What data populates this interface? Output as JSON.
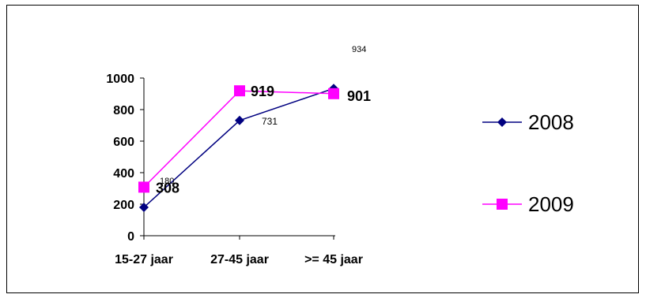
{
  "chart_data": {
    "type": "line",
    "categories": [
      "15-27 jaar",
      "27-45 jaar",
      ">= 45 jaar"
    ],
    "ylim": [
      0,
      1000
    ],
    "yticks": [
      0,
      200,
      400,
      600,
      800,
      1000
    ],
    "grid": false,
    "legend_position": "right",
    "series": [
      {
        "name": "2008",
        "color": "#000080",
        "marker": "diamond",
        "values": [
          180,
          731,
          934
        ],
        "data_labels": [
          "180",
          "731",
          "934"
        ]
      },
      {
        "name": "2009",
        "color": "#ff00ff",
        "marker": "square",
        "values": [
          308,
          919,
          901
        ],
        "data_labels": [
          "308",
          "919",
          "901"
        ]
      }
    ]
  }
}
